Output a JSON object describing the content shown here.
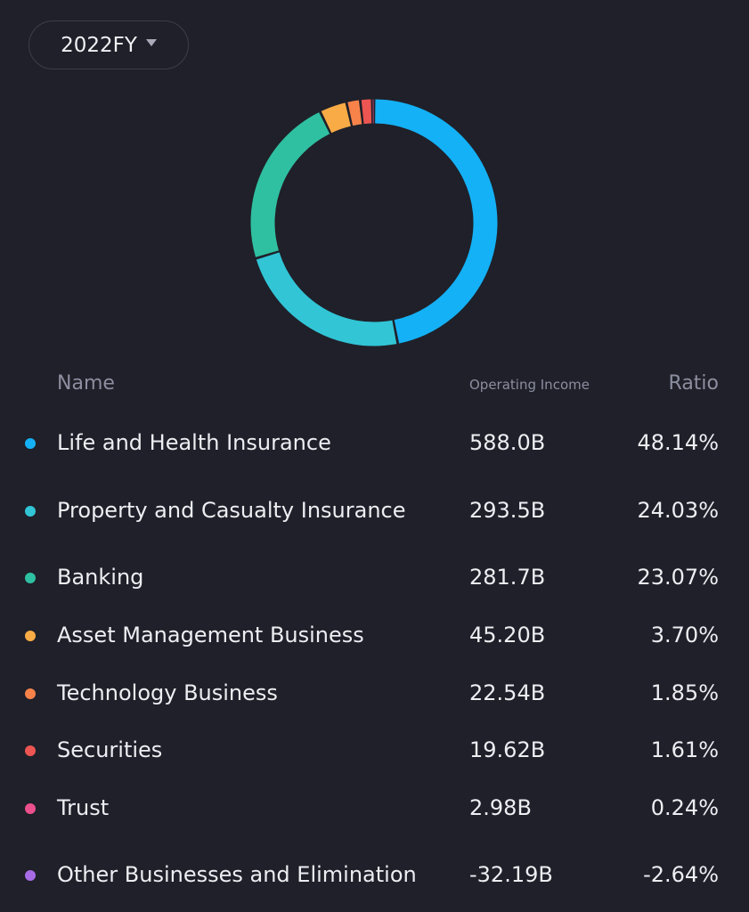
{
  "period_selector": {
    "label": "2022FY"
  },
  "table_header": {
    "name": "Name",
    "income": "Operating Income",
    "ratio": "Ratio"
  },
  "chart_data": {
    "type": "pie",
    "donut": true,
    "categories": [
      "Life and Health Insurance",
      "Property and Casualty Insurance",
      "Banking",
      "Asset Management Business",
      "Technology Business",
      "Securities",
      "Trust",
      "Other Businesses and Elimination"
    ],
    "values": [
      588.0,
      293.5,
      281.7,
      45.2,
      22.54,
      19.62,
      2.98,
      -32.19
    ],
    "value_labels": [
      "588.0B",
      "293.5B",
      "281.7B",
      "45.20B",
      "22.54B",
      "19.62B",
      "2.98B",
      "-32.19B"
    ],
    "ratios": [
      "48.14%",
      "24.03%",
      "23.07%",
      "3.70%",
      "1.85%",
      "1.61%",
      "0.24%",
      "-2.64%"
    ],
    "colors": [
      "#14b1f6",
      "#31c5d6",
      "#2fc0a1",
      "#f9ab45",
      "#f7834a",
      "#ec5552",
      "#eb4f8c",
      "#a86be6"
    ]
  }
}
